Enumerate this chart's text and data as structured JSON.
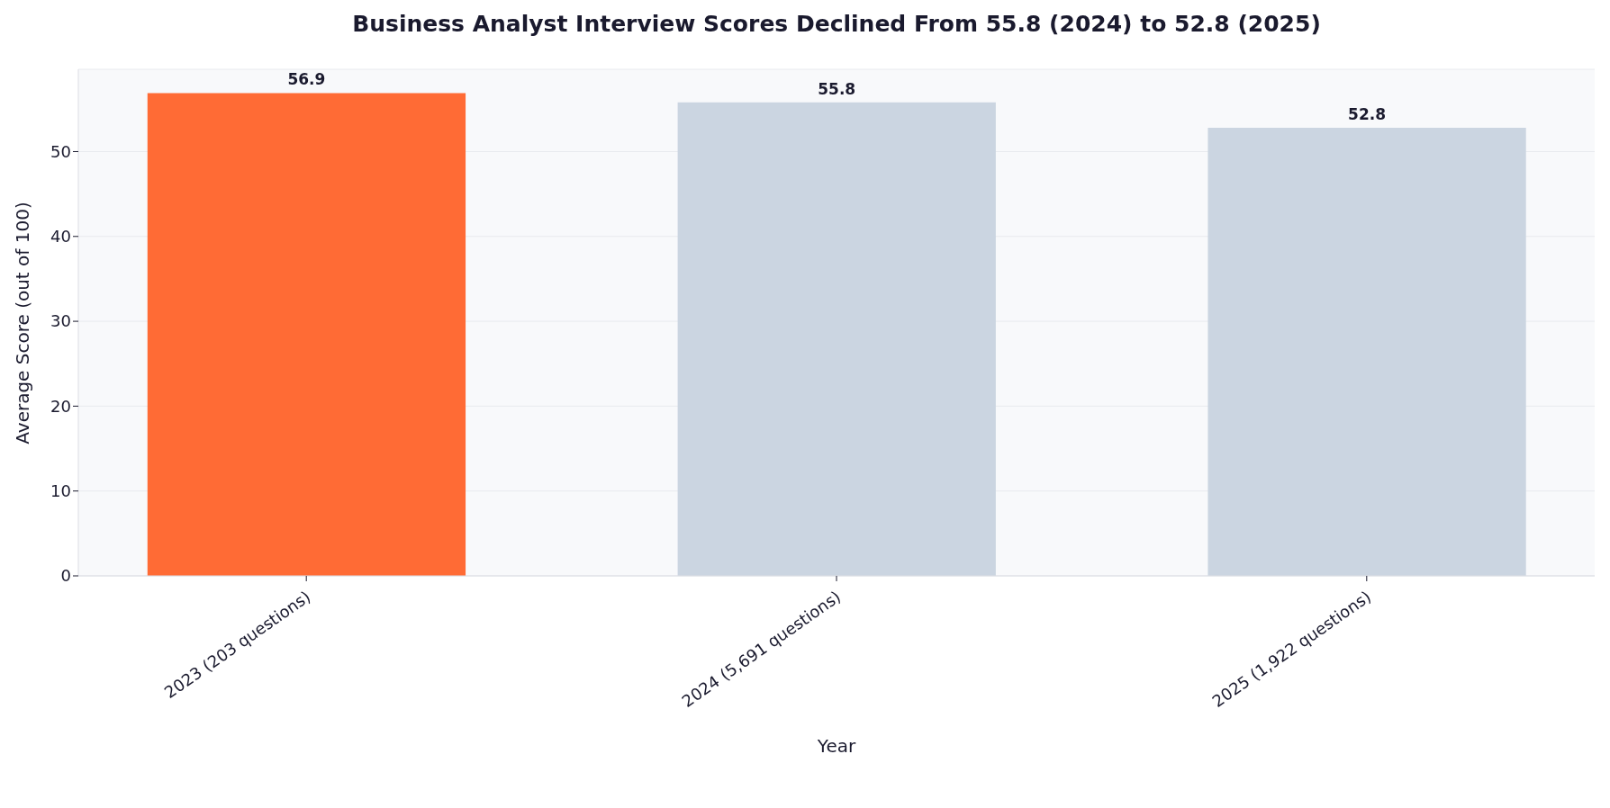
{
  "chart_data": {
    "type": "bar",
    "title": "Business Analyst Interview Scores Declined From 55.8 (2024) to 52.8 (2025)",
    "xlabel": "Year",
    "ylabel": "Average Score (out of 100)",
    "categories": [
      "2023 (203 questions)",
      "2024 (5,691 questions)",
      "2025 (1,922 questions)"
    ],
    "values": [
      56.9,
      55.8,
      52.8
    ],
    "colors": [
      "#ff6b35",
      "#cbd5e1",
      "#cbd5e1"
    ],
    "ylim": [
      0,
      59.7
    ],
    "yticks": [
      0,
      10,
      20,
      30,
      40,
      50
    ],
    "grid": "y",
    "data_labels": true
  }
}
